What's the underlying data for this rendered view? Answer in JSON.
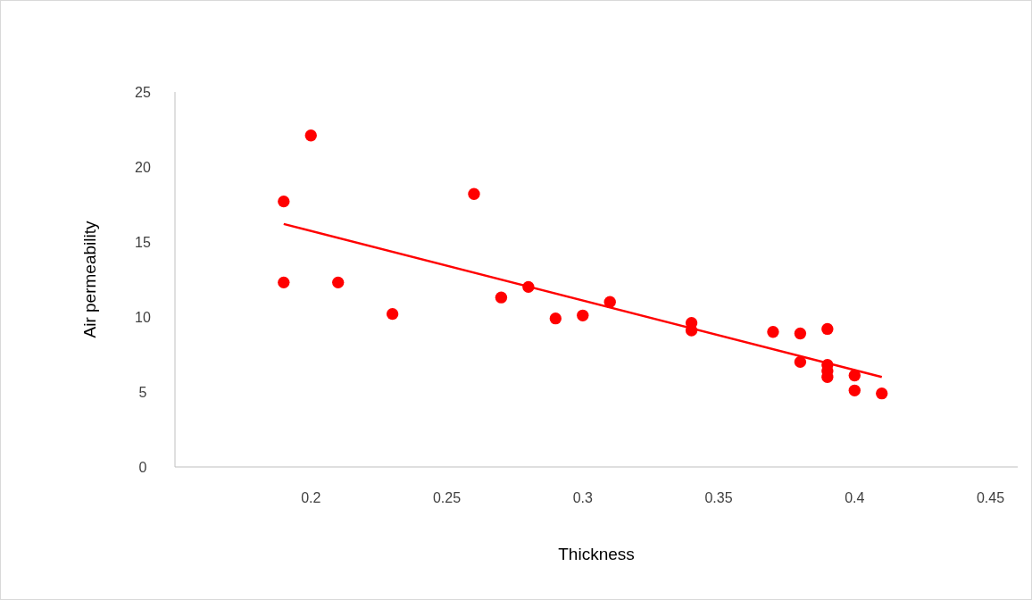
{
  "chart_data": {
    "type": "scatter",
    "xlabel": "Thickness",
    "ylabel": "Air permeability",
    "xlim": [
      0.15,
      0.46
    ],
    "xticks": [
      0.2,
      0.25,
      0.3,
      0.35,
      0.4,
      0.45
    ],
    "ylim": [
      0,
      25
    ],
    "yticks": [
      0,
      5,
      10,
      15,
      20,
      25
    ],
    "grid": false,
    "series": [
      {
        "color": "#ff0000",
        "marker": "circle",
        "x": [
          0.19,
          0.2,
          0.19,
          0.21,
          0.23,
          0.26,
          0.27,
          0.28,
          0.29,
          0.3,
          0.31,
          0.34,
          0.34,
          0.37,
          0.38,
          0.38,
          0.39,
          0.39,
          0.39,
          0.39,
          0.4,
          0.4,
          0.41
        ],
        "values": [
          17.7,
          22.1,
          12.3,
          12.3,
          10.2,
          18.2,
          11.3,
          12.0,
          9.9,
          10.1,
          11.0,
          9.6,
          9.1,
          9.0,
          8.9,
          7.0,
          9.2,
          6.8,
          6.4,
          6.0,
          6.1,
          5.1,
          4.9
        ]
      },
      {
        "type": "line",
        "color": "#ff0000",
        "x": [
          0.19,
          0.41
        ],
        "values": [
          16.2,
          6.0
        ]
      }
    ]
  }
}
